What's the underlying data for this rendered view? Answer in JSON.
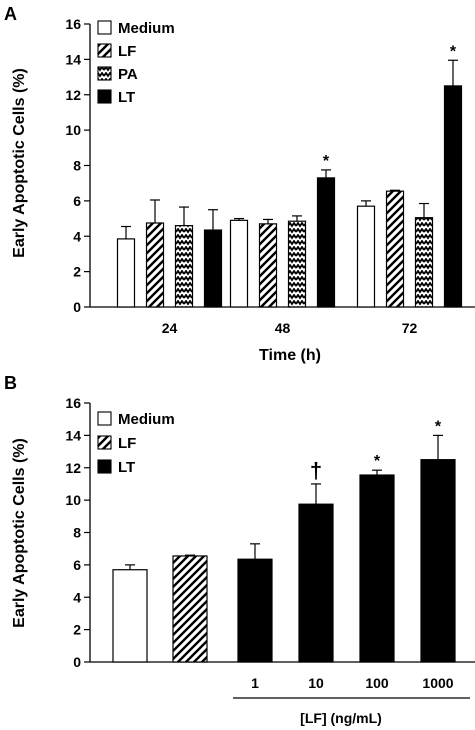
{
  "chart_data": [
    {
      "panel": "A",
      "type": "bar",
      "ylabel": "Early Apoptotic Cells (%)",
      "xlabel": "Time (h)",
      "categories": [
        "24",
        "48",
        "72"
      ],
      "ylim": [
        0,
        16
      ],
      "yticks": [
        "0",
        "2",
        "4",
        "6",
        "8",
        "10",
        "12",
        "14",
        "16"
      ],
      "legend_position": "top-left",
      "series": [
        {
          "name": "Medium",
          "pattern": "white",
          "values": [
            3.85,
            4.9,
            5.7
          ],
          "errors": [
            0.7,
            0.1,
            0.3
          ],
          "marks": [
            "",
            "",
            ""
          ]
        },
        {
          "name": "LF",
          "pattern": "diagonal",
          "values": [
            4.75,
            4.7,
            6.55
          ],
          "errors": [
            1.3,
            0.25,
            0.05
          ],
          "marks": [
            "",
            "",
            ""
          ]
        },
        {
          "name": "PA",
          "pattern": "zigzag",
          "values": [
            4.6,
            4.85,
            5.05
          ],
          "errors": [
            1.05,
            0.3,
            0.8
          ],
          "marks": [
            "",
            "",
            ""
          ]
        },
        {
          "name": "LT",
          "pattern": "black",
          "values": [
            4.35,
            7.3,
            12.5
          ],
          "errors": [
            1.15,
            0.45,
            1.45
          ],
          "marks": [
            "",
            "*",
            "*"
          ]
        }
      ]
    },
    {
      "panel": "B",
      "type": "bar",
      "ylabel": "Early Apoptotic Cells (%)",
      "xlabel": "[LF] (ng/mL)",
      "categories": [
        "",
        "",
        "1",
        "10",
        "100",
        "1000"
      ],
      "ylim": [
        0,
        16
      ],
      "yticks": [
        "0",
        "2",
        "4",
        "6",
        "8",
        "10",
        "12",
        "14",
        "16"
      ],
      "legend_position": "top-left",
      "legend": [
        {
          "name": "Medium",
          "pattern": "white"
        },
        {
          "name": "LF",
          "pattern": "diagonal"
        },
        {
          "name": "LT",
          "pattern": "black"
        }
      ],
      "bars": [
        {
          "pattern": "white",
          "value": 5.7,
          "error": 0.3,
          "mark": ""
        },
        {
          "pattern": "diagonal",
          "value": 6.55,
          "error": 0.05,
          "mark": ""
        },
        {
          "pattern": "black",
          "value": 6.35,
          "error": 0.95,
          "mark": ""
        },
        {
          "pattern": "black",
          "value": 9.75,
          "error": 1.25,
          "mark": "†"
        },
        {
          "pattern": "black",
          "value": 11.55,
          "error": 0.3,
          "mark": "*"
        },
        {
          "pattern": "black",
          "value": 12.5,
          "error": 1.5,
          "mark": "*"
        }
      ]
    }
  ]
}
